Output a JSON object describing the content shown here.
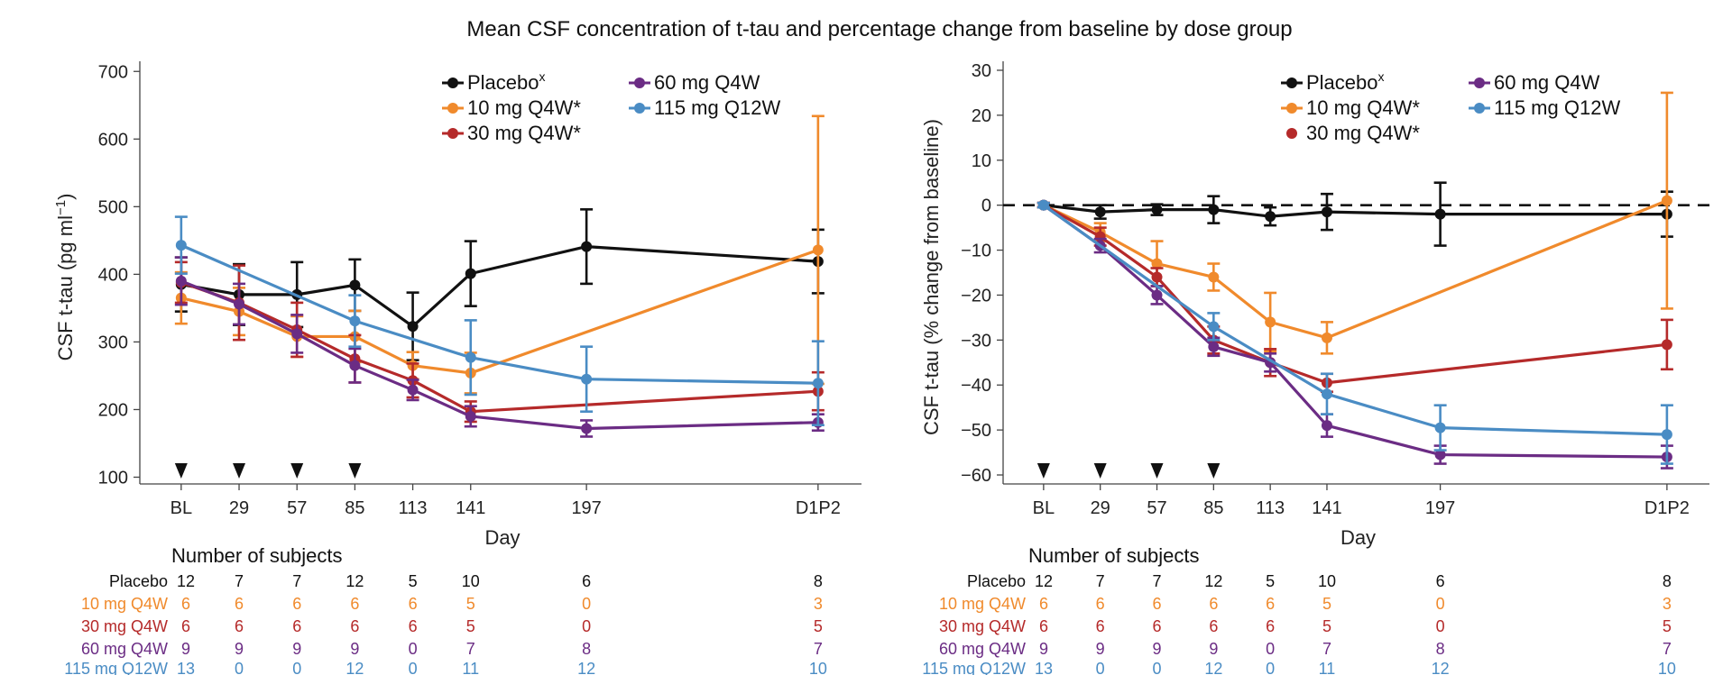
{
  "title": "Mean CSF concentration of t-tau and percentage change from baseline by dose group",
  "colors": {
    "placebo": "#111111",
    "d10": "#f08a2c",
    "d30": "#b52a2a",
    "d60": "#6b2c84",
    "d115": "#4a8cc4"
  },
  "subjects_title": "Number of subjects",
  "subject_table": {
    "rows": [
      {
        "label": "Placebo",
        "color": "#111111",
        "counts": [
          "12",
          "7",
          "7",
          "12",
          "5",
          "10",
          "6",
          "8"
        ]
      },
      {
        "label": "10 mg Q4W",
        "color": "#f08a2c",
        "counts": [
          "6",
          "6",
          "6",
          "6",
          "6",
          "5",
          "0",
          "3"
        ]
      },
      {
        "label": "30 mg Q4W",
        "color": "#b52a2a",
        "counts": [
          "6",
          "6",
          "6",
          "6",
          "6",
          "5",
          "0",
          "5"
        ]
      },
      {
        "label": "60 mg Q4W",
        "color": "#6b2c84",
        "counts": [
          "9",
          "9",
          "9",
          "9",
          "0",
          "7",
          "8",
          "7"
        ]
      },
      {
        "label": "115 mg Q12W",
        "color": "#4a8cc4",
        "counts": [
          "13",
          "0",
          "0",
          "12",
          "0",
          "11",
          "12",
          "10"
        ]
      }
    ]
  },
  "chart_data": [
    {
      "type": "line",
      "title": "",
      "xlabel": "Day",
      "ylabel": "CSF t-tau (pg ml",
      "ylabel_sup": "−1",
      "ylabel_end": ")",
      "x_tick_labels": [
        "BL",
        "29",
        "57",
        "85",
        "113",
        "141",
        "197",
        "D1P2"
      ],
      "x_positions": [
        1,
        29,
        57,
        85,
        113,
        141,
        197,
        309
      ],
      "xlim": [
        -19,
        330
      ],
      "ylim": [
        90,
        715
      ],
      "y_ticks": [
        100,
        200,
        300,
        400,
        500,
        600,
        700
      ],
      "dosing_markers_at": [
        1,
        29,
        57,
        85
      ],
      "legend": [
        {
          "name": "Placebo",
          "sup": "x",
          "key": "placebo",
          "marker": "line"
        },
        {
          "name": "60 mg Q4W",
          "sup": "",
          "key": "d60",
          "marker": "line"
        },
        {
          "name": "10 mg Q4W*",
          "sup": "",
          "key": "d10",
          "marker": "line"
        },
        {
          "name": "115 mg Q12W",
          "sup": "",
          "key": "d115",
          "marker": "line"
        },
        {
          "name": "30 mg Q4W*",
          "sup": "",
          "key": "d30",
          "marker": "line"
        }
      ],
      "series": [
        {
          "name": "Placebo",
          "key": "placebo",
          "x": [
            1,
            29,
            57,
            85,
            113,
            141,
            197,
            309
          ],
          "y": [
            385,
            370,
            370,
            384,
            323,
            401,
            441,
            419
          ],
          "err": [
            40,
            45,
            48,
            38,
            50,
            48,
            55,
            47
          ]
        },
        {
          "name": "10 mg Q4W*",
          "key": "d10",
          "x": [
            1,
            29,
            57,
            85,
            113,
            141,
            309
          ],
          "y": [
            365,
            345,
            308,
            308,
            265,
            254,
            436
          ],
          "err": [
            38,
            35,
            30,
            38,
            20,
            30,
            198
          ]
        },
        {
          "name": "30 mg Q4W*",
          "key": "d30",
          "x": [
            1,
            29,
            57,
            85,
            113,
            141,
            309
          ],
          "y": [
            388,
            358,
            318,
            275,
            243,
            197,
            227
          ],
          "err": [
            30,
            55,
            40,
            35,
            25,
            15,
            28
          ]
        },
        {
          "name": "60 mg Q4W",
          "key": "d60",
          "x": [
            1,
            29,
            57,
            85,
            113,
            141,
            197,
            309
          ],
          "y": [
            390,
            356,
            312,
            265,
            229,
            190,
            172,
            181
          ],
          "err": [
            35,
            30,
            28,
            25,
            15,
            15,
            12,
            12
          ]
        },
        {
          "name": "115 mg Q12W",
          "key": "d115",
          "x": [
            1,
            85,
            141,
            197,
            309
          ],
          "y": [
            443,
            331,
            277,
            245,
            239
          ],
          "err": [
            42,
            38,
            55,
            48,
            62
          ]
        }
      ]
    },
    {
      "type": "line",
      "title": "",
      "xlabel": "Day",
      "ylabel": "CSF t-tau (% change from baseline)",
      "x_tick_labels": [
        "BL",
        "29",
        "57",
        "85",
        "113",
        "141",
        "197",
        "D1P2"
      ],
      "x_positions": [
        1,
        29,
        57,
        85,
        113,
        141,
        197,
        309
      ],
      "xlim": [
        -19,
        330
      ],
      "ylim": [
        -62,
        32
      ],
      "y_ticks": [
        -60,
        -50,
        -40,
        -30,
        -20,
        -10,
        0,
        10,
        20,
        30
      ],
      "reference_line": 0,
      "dosing_markers_at": [
        1,
        29,
        57,
        85
      ],
      "legend": [
        {
          "name": "Placebo",
          "sup": "x",
          "key": "placebo",
          "marker": "line"
        },
        {
          "name": "60 mg Q4W",
          "sup": "",
          "key": "d60",
          "marker": "line"
        },
        {
          "name": "10 mg Q4W*",
          "sup": "",
          "key": "d10",
          "marker": "line"
        },
        {
          "name": "115 mg Q12W",
          "sup": "",
          "key": "d115",
          "marker": "line"
        },
        {
          "name": "30 mg Q4W*",
          "sup": "",
          "key": "d30",
          "marker": "dot"
        }
      ],
      "series": [
        {
          "name": "Placebo",
          "key": "placebo",
          "x": [
            1,
            29,
            57,
            85,
            113,
            141,
            197,
            309
          ],
          "y": [
            0,
            -1.5,
            -1,
            -1,
            -2.5,
            -1.5,
            -2,
            -2
          ],
          "err": [
            0.5,
            1.5,
            1.2,
            3,
            2,
            4,
            7,
            5
          ]
        },
        {
          "name": "10 mg Q4W*",
          "key": "d10",
          "x": [
            1,
            29,
            57,
            85,
            113,
            141,
            309
          ],
          "y": [
            0,
            -6,
            -13,
            -16,
            -26,
            -29.5,
            1
          ],
          "err": [
            0.5,
            2,
            5,
            3,
            6.5,
            3.5,
            24
          ]
        },
        {
          "name": "30 mg Q4W*",
          "key": "d30",
          "x": [
            1,
            29,
            57,
            85,
            113,
            141,
            309
          ],
          "y": [
            0,
            -7,
            -16,
            -30,
            -35,
            -39.5,
            -31
          ],
          "err": [
            0.5,
            2,
            2,
            3,
            3,
            2,
            5.5
          ]
        },
        {
          "name": "60 mg Q4W",
          "key": "d60",
          "x": [
            1,
            29,
            57,
            85,
            113,
            141,
            197,
            309
          ],
          "y": [
            0,
            -9,
            -20,
            -31.5,
            -35,
            -49,
            -55.5,
            -56
          ],
          "err": [
            0.5,
            1.5,
            2,
            2,
            2,
            2.5,
            2,
            2.5
          ]
        },
        {
          "name": "115 mg Q12W",
          "key": "d115",
          "x": [
            1,
            85,
            141,
            197,
            309
          ],
          "y": [
            0,
            -27,
            -42,
            -49.5,
            -51
          ],
          "err": [
            0.5,
            3,
            4.5,
            5,
            6.5
          ]
        }
      ]
    }
  ]
}
